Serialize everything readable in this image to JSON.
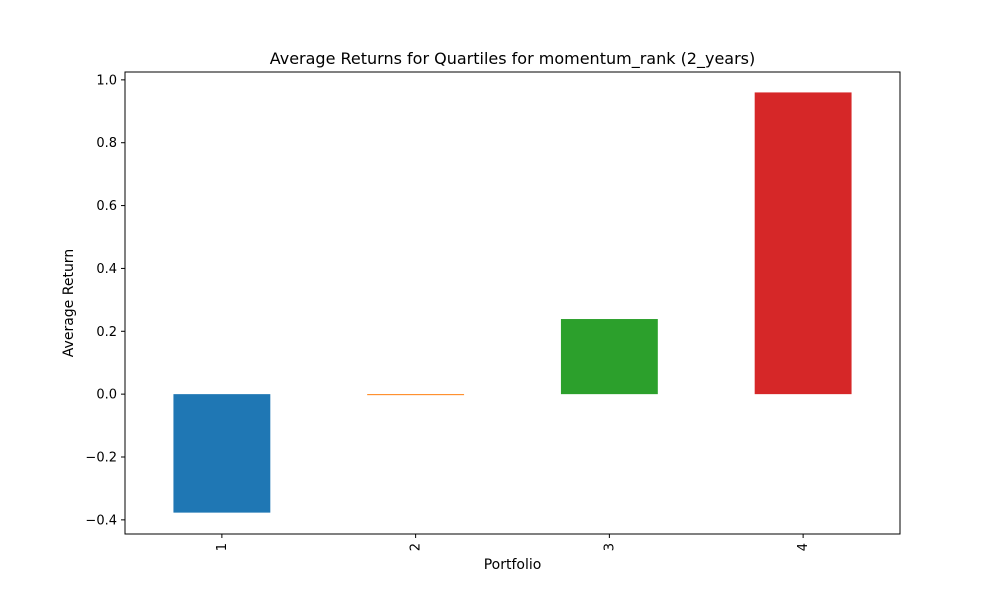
{
  "chart_data": {
    "type": "bar",
    "title": "Average Returns for Quartiles for momentum_rank (2_years)",
    "xlabel": "Portfolio",
    "ylabel": "Average Return",
    "categories": [
      "1",
      "2",
      "3",
      "4"
    ],
    "values": [
      -0.377,
      -0.003,
      0.239,
      0.96
    ],
    "colors": [
      "#1f77b4",
      "#ff7f0e",
      "#2ca02c",
      "#d62728"
    ],
    "ylim": [
      -0.445,
      1.025
    ],
    "yticks": [
      -0.4,
      -0.2,
      0.0,
      0.2,
      0.4,
      0.6,
      0.8,
      1.0
    ],
    "ytick_labels": [
      "−0.4",
      "−0.2",
      "0.0",
      "0.2",
      "0.4",
      "0.6",
      "0.8",
      "1.0"
    ],
    "xtick_rotation": "vertical",
    "grid": false,
    "legend": "none"
  }
}
